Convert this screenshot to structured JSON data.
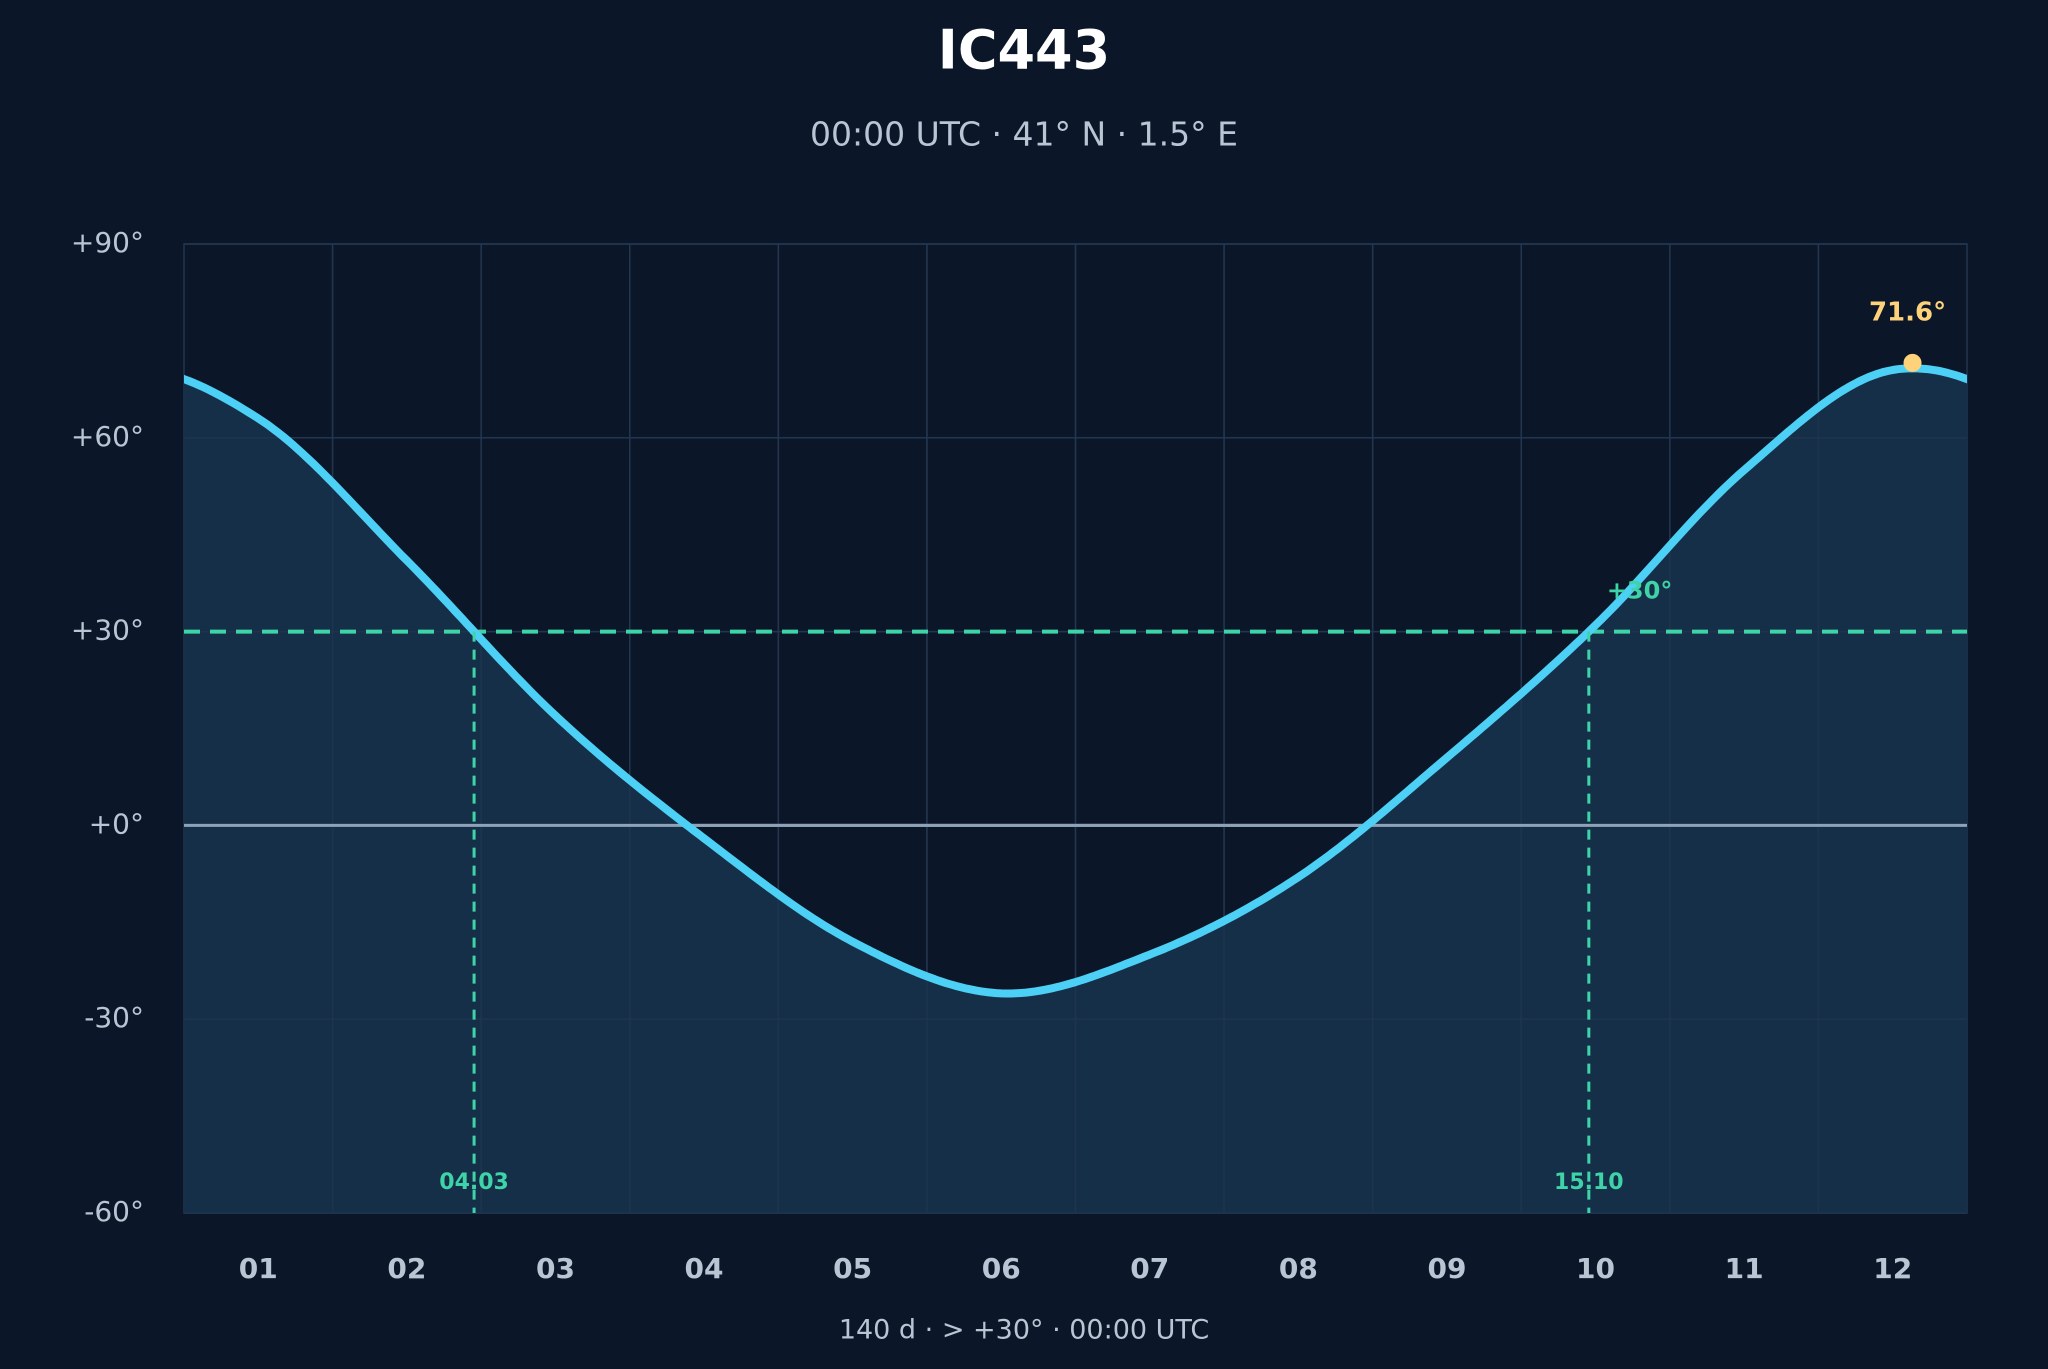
{
  "chart_data": {
    "type": "line",
    "title": "IC443",
    "subtitle": "00:00 UTC · 41° N · 1.5° E",
    "footer": "140 d  ·  > +30°  ·  00:00 UTC",
    "categories": [
      "01",
      "02",
      "03",
      "04",
      "05",
      "06",
      "07",
      "08",
      "09",
      "10",
      "11",
      "12"
    ],
    "series": [
      {
        "color": "#4dd0f5",
        "values": [
          63,
          41,
          17,
          -2,
          -18,
          -26,
          -20,
          -8,
          10.5,
          31,
          55,
          70.5
        ]
      }
    ],
    "ylim": [
      -60,
      90
    ],
    "yticks": [
      {
        "value": -60,
        "label": "-60°"
      },
      {
        "value": -30,
        "label": "-30°"
      },
      {
        "value": 0,
        "label": "+0°"
      },
      {
        "value": 30,
        "label": "+30°"
      },
      {
        "value": 60,
        "label": "+60°"
      },
      {
        "value": 90,
        "label": "+90°"
      }
    ],
    "grid": true,
    "threshold": {
      "value": 30,
      "label": "+30°",
      "color": "#3fd3a8"
    },
    "crossings": [
      "04.03",
      "15.10"
    ],
    "peak": {
      "value": 71.6,
      "label": "71.6°",
      "color": "#fdd27a"
    }
  }
}
